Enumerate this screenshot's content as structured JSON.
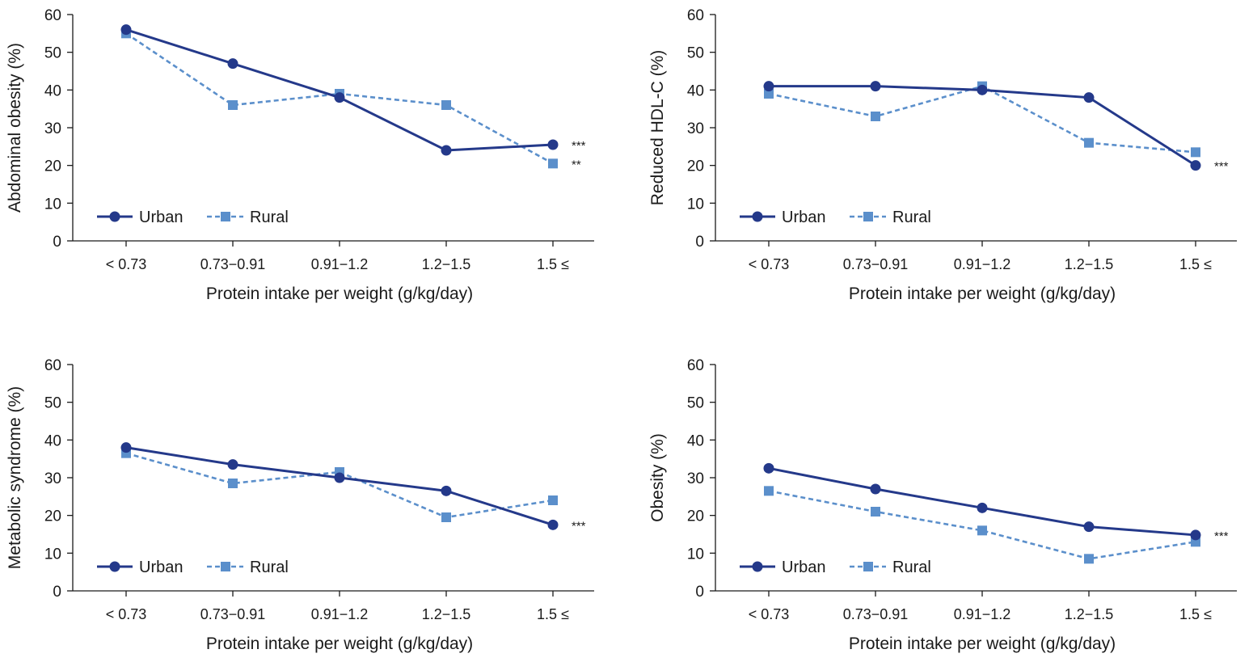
{
  "colors": {
    "urban": "#24398a",
    "rural": "#5b8fcb",
    "axis": "#1a1a1a"
  },
  "legend": {
    "urban_label": "Urban",
    "rural_label": "Rural"
  },
  "chart_data": [
    {
      "type": "line",
      "title": "",
      "xlabel": "Protein intake per weight (g/kg/day)",
      "ylabel": "Abdominal obesity (%)",
      "categories": [
        "< 0.73",
        "0.73−0.91",
        "0.91−1.2",
        "1.2−1.5",
        "1.5 ≤"
      ],
      "ylim": [
        0,
        60
      ],
      "yticks": [
        0,
        10,
        20,
        30,
        40,
        50,
        60
      ],
      "legend_position": "bottom-left",
      "series": [
        {
          "name": "Urban",
          "values": [
            56,
            47,
            38,
            24,
            25.5
          ],
          "annotation": "***"
        },
        {
          "name": "Rural",
          "values": [
            55,
            36,
            39,
            36,
            20.5
          ],
          "annotation": "**"
        }
      ]
    },
    {
      "type": "line",
      "title": "",
      "xlabel": "Protein intake per weight (g/kg/day)",
      "ylabel": "Reduced HDL-C (%)",
      "categories": [
        "< 0.73",
        "0.73−0.91",
        "0.91−1.2",
        "1.2−1.5",
        "1.5 ≤"
      ],
      "ylim": [
        0,
        60
      ],
      "yticks": [
        0,
        10,
        20,
        30,
        40,
        50,
        60
      ],
      "legend_position": "bottom-left",
      "series": [
        {
          "name": "Urban",
          "values": [
            41,
            41,
            40,
            38,
            20
          ],
          "annotation": "***"
        },
        {
          "name": "Rural",
          "values": [
            39,
            33,
            41,
            26,
            23.5
          ],
          "annotation": ""
        }
      ]
    },
    {
      "type": "line",
      "title": "",
      "xlabel": "Protein intake per weight (g/kg/day)",
      "ylabel": "Metabolic syndrome (%)",
      "categories": [
        "< 0.73",
        "0.73−0.91",
        "0.91−1.2",
        "1.2−1.5",
        "1.5 ≤"
      ],
      "ylim": [
        0,
        60
      ],
      "yticks": [
        0,
        10,
        20,
        30,
        40,
        50,
        60
      ],
      "legend_position": "bottom-left",
      "series": [
        {
          "name": "Urban",
          "values": [
            38,
            33.5,
            30,
            26.5,
            17.5
          ],
          "annotation": "***"
        },
        {
          "name": "Rural",
          "values": [
            36.5,
            28.5,
            31.5,
            19.5,
            24
          ],
          "annotation": ""
        }
      ]
    },
    {
      "type": "line",
      "title": "",
      "xlabel": "Protein intake per weight (g/kg/day)",
      "ylabel": "Obesity (%)",
      "categories": [
        "< 0.73",
        "0.73−0.91",
        "0.91−1.2",
        "1.2−1.5",
        "1.5 ≤"
      ],
      "ylim": [
        0,
        60
      ],
      "yticks": [
        0,
        10,
        20,
        30,
        40,
        50,
        60
      ],
      "legend_position": "bottom-left",
      "series": [
        {
          "name": "Urban",
          "values": [
            32.5,
            27,
            22,
            17,
            14.8
          ],
          "annotation": "***"
        },
        {
          "name": "Rural",
          "values": [
            26.5,
            21,
            16,
            8.5,
            13
          ],
          "annotation": ""
        }
      ]
    }
  ]
}
